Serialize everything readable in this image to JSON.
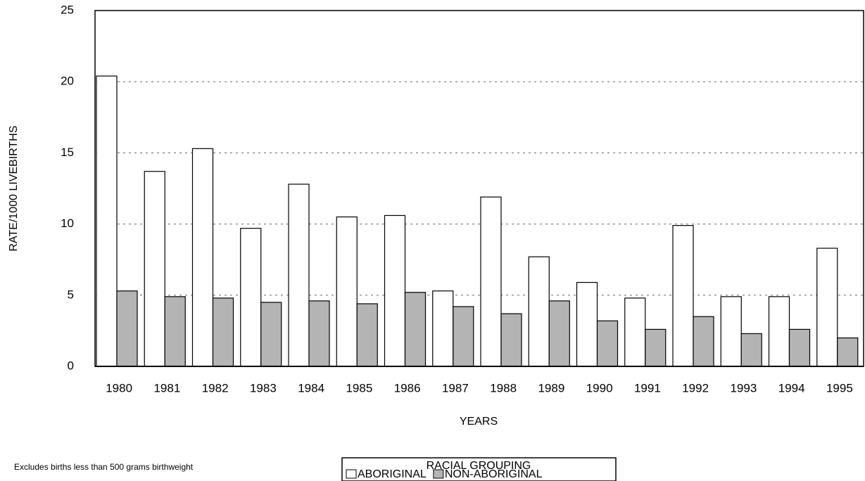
{
  "chart_data": {
    "type": "bar",
    "y_label": "RATE/1000 LIVEBIRTHS",
    "x_label": "YEARS",
    "legend_title": "RACIAL GROUPING",
    "note": "Excludes births less than 500 grams birthweight",
    "categories": [
      "1980",
      "1981",
      "1982",
      "1983",
      "1984",
      "1985",
      "1986",
      "1987",
      "1988",
      "1989",
      "1990",
      "1991",
      "1992",
      "1993",
      "1994",
      "1995"
    ],
    "series": [
      {
        "name": "ABORIGINAL",
        "color": "#ffffff",
        "values": [
          20.4,
          13.7,
          15.3,
          9.7,
          12.8,
          10.5,
          10.6,
          5.3,
          11.9,
          7.7,
          5.9,
          4.8,
          9.9,
          4.9,
          4.9,
          8.3
        ]
      },
      {
        "name": "NON-ABORIGINAL",
        "color": "#b4b4b4",
        "values": [
          5.3,
          4.9,
          4.8,
          4.5,
          4.6,
          4.4,
          5.2,
          4.2,
          3.7,
          4.6,
          3.2,
          2.6,
          3.5,
          2.3,
          2.6,
          2.0
        ]
      }
    ],
    "ylim": [
      0,
      25
    ],
    "yticks": [
      0,
      5,
      10,
      15,
      20,
      25
    ],
    "grid": true
  }
}
